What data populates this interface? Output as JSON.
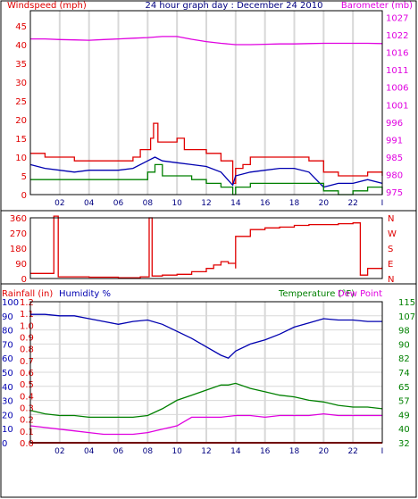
{
  "colors": {
    "wind": "#e00000",
    "wind_avg": "#0000b0",
    "wind_low": "#008000",
    "barometer": "#e000e0",
    "direction": "#e00000",
    "rain": "#e00000",
    "humidity": "#0000b0",
    "temperature": "#008000",
    "dew_point": "#e000e0",
    "grid": "#d8d8d8",
    "frame": "#000000"
  },
  "chart_data": [
    {
      "type": "line",
      "panel": "wind-barometer",
      "title": "24 hour graph day : December 24 2010",
      "left_axis_label": "Windspeed (mph)",
      "right_axis_label": "Barometer (mb)",
      "x_ticks": [
        "02",
        "04",
        "06",
        "08",
        "10",
        "12",
        "14",
        "16",
        "18",
        "20",
        "22",
        "I"
      ],
      "x_range": [
        0,
        24
      ],
      "left_ticks": [
        "0",
        "5",
        "10",
        "15",
        "20",
        "25",
        "30",
        "35",
        "40",
        "45"
      ],
      "left_range": [
        0,
        49
      ],
      "right_ticks": [
        "975",
        "980",
        "985",
        "991",
        "996",
        "1001",
        "1006",
        "1011",
        "1016",
        "1022",
        "1027"
      ],
      "right_range": [
        974.2,
        1029
      ],
      "grid": true,
      "series": [
        {
          "color_key": "wind",
          "axis": "left",
          "step": true,
          "x": [
            0,
            1,
            2,
            3,
            4,
            5,
            6,
            7,
            7.5,
            8,
            8.2,
            8.4,
            8.7,
            9,
            10,
            10.5,
            11,
            12,
            13,
            13.8,
            14,
            14.5,
            15,
            16,
            17,
            18,
            19,
            20,
            21,
            22,
            23,
            24
          ],
          "y": [
            11,
            10,
            10,
            9,
            9,
            9,
            9,
            10,
            12,
            12,
            15,
            19,
            14,
            14,
            15,
            12,
            12,
            11,
            9,
            3,
            7,
            8,
            10,
            10,
            10,
            10,
            9,
            6,
            5,
            5,
            6,
            5
          ]
        },
        {
          "color_key": "wind_avg",
          "axis": "left",
          "step": false,
          "x": [
            0,
            1,
            2,
            3,
            4,
            5,
            6,
            7,
            8,
            8.5,
            9,
            10,
            11,
            12,
            13,
            13.8,
            14,
            15,
            16,
            17,
            18,
            19,
            20,
            21,
            22,
            23,
            24
          ],
          "y": [
            8,
            7,
            6.5,
            6,
            6.5,
            6.5,
            6.5,
            7,
            9,
            10,
            9,
            8.5,
            8,
            7.5,
            6,
            2.5,
            5,
            6,
            6.5,
            7,
            7,
            6,
            2,
            3,
            3,
            4,
            3
          ]
        },
        {
          "color_key": "wind_low",
          "axis": "left",
          "step": true,
          "x": [
            0,
            1,
            2,
            3,
            4,
            5,
            6,
            7,
            8,
            8.5,
            9,
            10,
            11,
            12,
            13,
            13.8,
            14,
            15,
            16,
            17,
            18,
            19,
            20,
            21,
            22,
            23,
            24
          ],
          "y": [
            4,
            4,
            4,
            4,
            4,
            4,
            4,
            4,
            6,
            8,
            5,
            5,
            4,
            3,
            2,
            0,
            2,
            3,
            3,
            3,
            3,
            3,
            1,
            0,
            1,
            2,
            0
          ]
        },
        {
          "color_key": "barometer",
          "axis": "right",
          "step": false,
          "x": [
            0,
            1,
            2,
            3,
            4,
            5,
            6,
            7,
            8,
            9,
            10,
            11,
            12,
            13,
            14,
            15,
            16,
            17,
            18,
            19,
            20,
            21,
            22,
            23,
            24
          ],
          "y": [
            1020.6,
            1020.6,
            1020.4,
            1020.3,
            1020.2,
            1020.4,
            1020.6,
            1020.8,
            1021.0,
            1021.3,
            1021.3,
            1020.5,
            1019.8,
            1019.3,
            1018.9,
            1018.9,
            1019.0,
            1019.1,
            1019.1,
            1019.2,
            1019.3,
            1019.3,
            1019.3,
            1019.3,
            1019.2
          ]
        }
      ]
    },
    {
      "type": "line",
      "panel": "wind-direction",
      "left_ticks": [
        "0",
        "90",
        "180",
        "270",
        "360"
      ],
      "left_range": [
        0,
        360
      ],
      "right_ticks": [
        "N",
        "E",
        "S",
        "W",
        "N"
      ],
      "x_range": [
        0,
        24
      ],
      "grid": false,
      "series": [
        {
          "color_key": "direction",
          "step": true,
          "x": [
            0,
            0.8,
            1.6,
            1.6,
            1.9,
            1.9,
            2.2,
            4,
            6,
            7.5,
            8.1,
            8.1,
            8.3,
            8.3,
            9,
            10,
            11,
            12,
            12.5,
            13,
            13.5,
            14,
            14,
            15,
            16,
            17,
            18,
            19,
            20,
            21,
            22,
            22.5,
            22.5,
            23,
            24
          ],
          "y": [
            30,
            30,
            30,
            370,
            370,
            10,
            10,
            8,
            5,
            10,
            15,
            360,
            360,
            15,
            20,
            25,
            40,
            60,
            80,
            100,
            90,
            60,
            250,
            290,
            300,
            305,
            315,
            320,
            320,
            325,
            330,
            330,
            20,
            60,
            70
          ]
        }
      ]
    },
    {
      "type": "line",
      "panel": "rain-humidity-temperature",
      "rain_label": "Rainfall (in)",
      "humidity_label": "Humidity %",
      "temperature_label": "Temperature (°F)",
      "dew_point_label": "Dew Point",
      "rain_ticks": [
        "0.0",
        "0.1",
        "0.2",
        "0.3",
        "0.4",
        "0.5",
        "0.6",
        "0.7",
        "0.8",
        "0.9",
        "1.0",
        "1.1",
        "1.2"
      ],
      "humidity_ticks": [
        "0",
        "10",
        "20",
        "30",
        "40",
        "50",
        "60",
        "70",
        "80",
        "90",
        "100"
      ],
      "humidity_range": [
        0,
        100
      ],
      "temp_ticks": [
        "32",
        "40",
        "49",
        "57",
        "65",
        "74",
        "82",
        "90",
        "98",
        "107",
        "115"
      ],
      "temp_range": [
        32,
        115
      ],
      "x_range": [
        0,
        24
      ],
      "grid": true,
      "series": [
        {
          "color_key": "humidity",
          "axis": "humidity",
          "x": [
            0,
            1,
            2,
            3,
            4,
            5,
            6,
            7,
            8,
            9,
            10,
            11,
            12,
            13,
            13.5,
            14,
            15,
            16,
            17,
            18,
            19,
            20,
            21,
            22,
            23,
            24
          ],
          "y": [
            91,
            91,
            90,
            90,
            88,
            86,
            84,
            86,
            87,
            84,
            79,
            74,
            68,
            62,
            60,
            65,
            70,
            73,
            77,
            82,
            85,
            88,
            87,
            87,
            86,
            86
          ]
        },
        {
          "color_key": "temperature",
          "axis": "temp",
          "x": [
            0,
            1,
            2,
            3,
            4,
            5,
            6,
            7,
            8,
            9,
            10,
            11,
            12,
            13,
            13.5,
            14,
            15,
            16,
            17,
            18,
            19,
            20,
            21,
            22,
            23,
            24
          ],
          "y": [
            51,
            49,
            48,
            48,
            47,
            47,
            47,
            47,
            48,
            52,
            57,
            60,
            63,
            66,
            66,
            67,
            64,
            62,
            60,
            59,
            57,
            56,
            54,
            53,
            53,
            52
          ]
        },
        {
          "color_key": "dew_point",
          "axis": "temp",
          "x": [
            0,
            1,
            2,
            3,
            4,
            5,
            6,
            7,
            8,
            9,
            10,
            11,
            12,
            13,
            14,
            15,
            16,
            17,
            18,
            19,
            20,
            21,
            22,
            23,
            24
          ],
          "y": [
            42,
            41,
            40,
            39,
            38,
            37,
            37,
            37,
            38,
            40,
            42,
            47,
            47,
            47,
            48,
            48,
            47,
            48,
            48,
            48,
            49,
            48,
            48,
            48,
            48
          ]
        },
        {
          "color_key": "rain",
          "axis": "humidity",
          "x": [
            0,
            24
          ],
          "y": [
            0,
            0
          ]
        }
      ]
    }
  ]
}
